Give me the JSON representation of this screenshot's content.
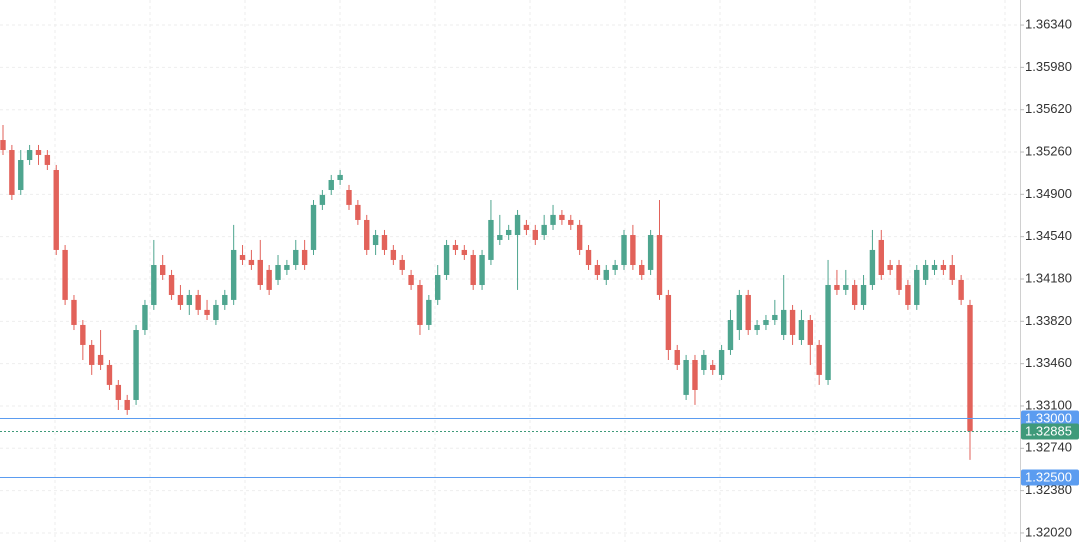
{
  "chart_data": {
    "type": "candlestick",
    "ylim": [
      1.31943,
      1.36553
    ],
    "yticks": [
      {
        "value": 1.3202,
        "label": "1.32020"
      },
      {
        "value": 1.3238,
        "label": "1.32380"
      },
      {
        "value": 1.3274,
        "label": "1.32740"
      },
      {
        "value": 1.331,
        "label": "1.33100"
      },
      {
        "value": 1.3346,
        "label": "1.33460"
      },
      {
        "value": 1.3382,
        "label": "1.33820"
      },
      {
        "value": 1.3418,
        "label": "1.34180"
      },
      {
        "value": 1.3454,
        "label": "1.34540"
      },
      {
        "value": 1.349,
        "label": "1.34900"
      },
      {
        "value": 1.3526,
        "label": "1.35260"
      },
      {
        "value": 1.3562,
        "label": "1.35620"
      },
      {
        "value": 1.3598,
        "label": "1.35980"
      },
      {
        "value": 1.3634,
        "label": "1.36340"
      }
    ],
    "grid": true,
    "up_color": "#4ea58f",
    "down_color": "#e2625a",
    "price_lines": [
      {
        "value": 1.33,
        "label": "1.33000",
        "color": "#5b9cf0",
        "style": "solid"
      },
      {
        "value": 1.32885,
        "label": "1.32885",
        "color": "#3f9a7a",
        "style": "dotted"
      },
      {
        "value": 1.325,
        "label": "1.32500",
        "color": "#5b9cf0",
        "style": "solid"
      }
    ],
    "ohlc": [
      [
        1.35362,
        1.3549,
        1.35235,
        1.35277
      ],
      [
        1.35277,
        1.3532,
        1.34852,
        1.34895
      ],
      [
        1.34937,
        1.35277,
        1.34895,
        1.35192
      ],
      [
        1.35192,
        1.3532,
        1.3515,
        1.35277
      ],
      [
        1.35277,
        1.3532,
        1.3515,
        1.35235
      ],
      [
        1.35235,
        1.35277,
        1.35107,
        1.3515
      ],
      [
        1.35107,
        1.3515,
        1.34384,
        1.34427
      ],
      [
        1.34427,
        1.34469,
        1.33959,
        1.34002
      ],
      [
        1.34002,
        1.34044,
        1.33746,
        1.33789
      ],
      [
        1.33789,
        1.33831,
        1.33491,
        1.33619
      ],
      [
        1.33619,
        1.33661,
        1.33364,
        1.33449
      ],
      [
        1.33534,
        1.33746,
        1.33406,
        1.33449
      ],
      [
        1.33449,
        1.33491,
        1.33236,
        1.33279
      ],
      [
        1.33279,
        1.33321,
        1.33066,
        1.33151
      ],
      [
        1.33151,
        1.33194,
        1.33024,
        1.33066
      ],
      [
        1.33151,
        1.33789,
        1.33109,
        1.33746
      ],
      [
        1.33746,
        1.34002,
        1.33704,
        1.33959
      ],
      [
        1.33959,
        1.34512,
        1.33917,
        1.34299
      ],
      [
        1.34299,
        1.34384,
        1.34172,
        1.34214
      ],
      [
        1.34214,
        1.34257,
        1.34002,
        1.34044
      ],
      [
        1.34044,
        1.34129,
        1.33917,
        1.33959
      ],
      [
        1.33959,
        1.34087,
        1.33874,
        1.34044
      ],
      [
        1.34044,
        1.34087,
        1.33874,
        1.33917
      ],
      [
        1.33917,
        1.34002,
        1.33831,
        1.33874
      ],
      [
        1.33831,
        1.34002,
        1.33789,
        1.33959
      ],
      [
        1.33959,
        1.34087,
        1.33917,
        1.34044
      ],
      [
        1.34002,
        1.3464,
        1.33959,
        1.34427
      ],
      [
        1.34384,
        1.34469,
        1.34299,
        1.34342
      ],
      [
        1.34342,
        1.34427,
        1.34257,
        1.34299
      ],
      [
        1.34342,
        1.34512,
        1.34087,
        1.34129
      ],
      [
        1.34257,
        1.34299,
        1.34044,
        1.34087
      ],
      [
        1.34172,
        1.34384,
        1.34129,
        1.34299
      ],
      [
        1.34257,
        1.34342,
        1.34214,
        1.34299
      ],
      [
        1.34299,
        1.34512,
        1.34257,
        1.34427
      ],
      [
        1.34427,
        1.34512,
        1.34257,
        1.34299
      ],
      [
        1.34427,
        1.34852,
        1.34384,
        1.3481
      ],
      [
        1.3481,
        1.34937,
        1.34767,
        1.34895
      ],
      [
        1.34937,
        1.35065,
        1.34895,
        1.35022
      ],
      [
        1.35022,
        1.35107,
        1.3498,
        1.35065
      ],
      [
        1.34937,
        1.3498,
        1.34767,
        1.3481
      ],
      [
        1.3481,
        1.34852,
        1.3464,
        1.34682
      ],
      [
        1.34682,
        1.34725,
        1.34384,
        1.34427
      ],
      [
        1.34469,
        1.34597,
        1.34384,
        1.34554
      ],
      [
        1.34554,
        1.34597,
        1.34384,
        1.34427
      ],
      [
        1.34427,
        1.34469,
        1.34299,
        1.34342
      ],
      [
        1.34342,
        1.34384,
        1.34214,
        1.34257
      ],
      [
        1.34214,
        1.34257,
        1.34087,
        1.34129
      ],
      [
        1.34129,
        1.34172,
        1.33704,
        1.33789
      ],
      [
        1.33789,
        1.34044,
        1.33746,
        1.34002
      ],
      [
        1.34002,
        1.34299,
        1.33959,
        1.34214
      ],
      [
        1.34214,
        1.34512,
        1.34172,
        1.34469
      ],
      [
        1.34469,
        1.34512,
        1.34384,
        1.34427
      ],
      [
        1.34427,
        1.34469,
        1.34342,
        1.34384
      ],
      [
        1.34384,
        1.34427,
        1.34087,
        1.34129
      ],
      [
        1.34129,
        1.34427,
        1.34087,
        1.34384
      ],
      [
        1.34342,
        1.34852,
        1.34299,
        1.34682
      ],
      [
        1.34512,
        1.34725,
        1.34469,
        1.34554
      ],
      [
        1.34554,
        1.3464,
        1.34512,
        1.34597
      ],
      [
        1.34554,
        1.34767,
        1.34087,
        1.34725
      ],
      [
        1.3464,
        1.34682,
        1.34554,
        1.34597
      ],
      [
        1.34597,
        1.3464,
        1.34469,
        1.34512
      ],
      [
        1.34554,
        1.34725,
        1.34512,
        1.3464
      ],
      [
        1.3464,
        1.3481,
        1.34597,
        1.34725
      ],
      [
        1.34725,
        1.34767,
        1.3464,
        1.34682
      ],
      [
        1.34682,
        1.34725,
        1.34597,
        1.3464
      ],
      [
        1.3464,
        1.34682,
        1.34384,
        1.34427
      ],
      [
        1.34427,
        1.34469,
        1.34257,
        1.34299
      ],
      [
        1.34299,
        1.34342,
        1.34172,
        1.34214
      ],
      [
        1.34172,
        1.34299,
        1.34129,
        1.34257
      ],
      [
        1.34257,
        1.34342,
        1.34214,
        1.34299
      ],
      [
        1.34299,
        1.34597,
        1.34257,
        1.34554
      ],
      [
        1.34554,
        1.3464,
        1.34257,
        1.34299
      ],
      [
        1.34299,
        1.34342,
        1.34172,
        1.34214
      ],
      [
        1.34257,
        1.34597,
        1.34214,
        1.34554
      ],
      [
        1.34554,
        1.34852,
        1.34002,
        1.34044
      ],
      [
        1.34044,
        1.34087,
        1.33491,
        1.33576
      ],
      [
        1.33576,
        1.33619,
        1.33406,
        1.33449
      ],
      [
        1.33194,
        1.33534,
        1.33151,
        1.33491
      ],
      [
        1.33491,
        1.33534,
        1.33109,
        1.33236
      ],
      [
        1.33406,
        1.33576,
        1.33364,
        1.33534
      ],
      [
        1.33449,
        1.33491,
        1.33364,
        1.33406
      ],
      [
        1.33364,
        1.33619,
        1.33321,
        1.33576
      ],
      [
        1.33576,
        1.33917,
        1.33534,
        1.33831
      ],
      [
        1.33746,
        1.34087,
        1.33661,
        1.34044
      ],
      [
        1.34044,
        1.34087,
        1.33704,
        1.33746
      ],
      [
        1.33746,
        1.33831,
        1.33704,
        1.33789
      ],
      [
        1.33789,
        1.33874,
        1.33746,
        1.33831
      ],
      [
        1.33831,
        1.34002,
        1.33789,
        1.33874
      ],
      [
        1.33704,
        1.34214,
        1.33661,
        1.33917
      ],
      [
        1.33917,
        1.33959,
        1.33619,
        1.33704
      ],
      [
        1.33661,
        1.33917,
        1.33619,
        1.33831
      ],
      [
        1.33831,
        1.33874,
        1.33449,
        1.33619
      ],
      [
        1.33619,
        1.33661,
        1.33279,
        1.33364
      ],
      [
        1.33321,
        1.34342,
        1.33279,
        1.34129
      ],
      [
        1.34129,
        1.34257,
        1.34044,
        1.34087
      ],
      [
        1.34087,
        1.34257,
        1.34044,
        1.34129
      ],
      [
        1.34129,
        1.34172,
        1.33917,
        1.33959
      ],
      [
        1.33959,
        1.34214,
        1.33917,
        1.34129
      ],
      [
        1.34129,
        1.34597,
        1.34087,
        1.34427
      ],
      [
        1.34512,
        1.34597,
        1.34172,
        1.34214
      ],
      [
        1.34299,
        1.34342,
        1.34214,
        1.34257
      ],
      [
        1.34299,
        1.34342,
        1.34044,
        1.34087
      ],
      [
        1.34129,
        1.34172,
        1.33917,
        1.33959
      ],
      [
        1.33959,
        1.34299,
        1.33917,
        1.34257
      ],
      [
        1.34172,
        1.34342,
        1.34129,
        1.34299
      ],
      [
        1.34257,
        1.34342,
        1.34214,
        1.34299
      ],
      [
        1.34299,
        1.34342,
        1.34214,
        1.34257
      ],
      [
        1.34299,
        1.34384,
        1.34129,
        1.34172
      ],
      [
        1.34172,
        1.34214,
        1.33959,
        1.34002
      ],
      [
        1.33959,
        1.34002,
        1.32641,
        1.32885
      ]
    ]
  }
}
